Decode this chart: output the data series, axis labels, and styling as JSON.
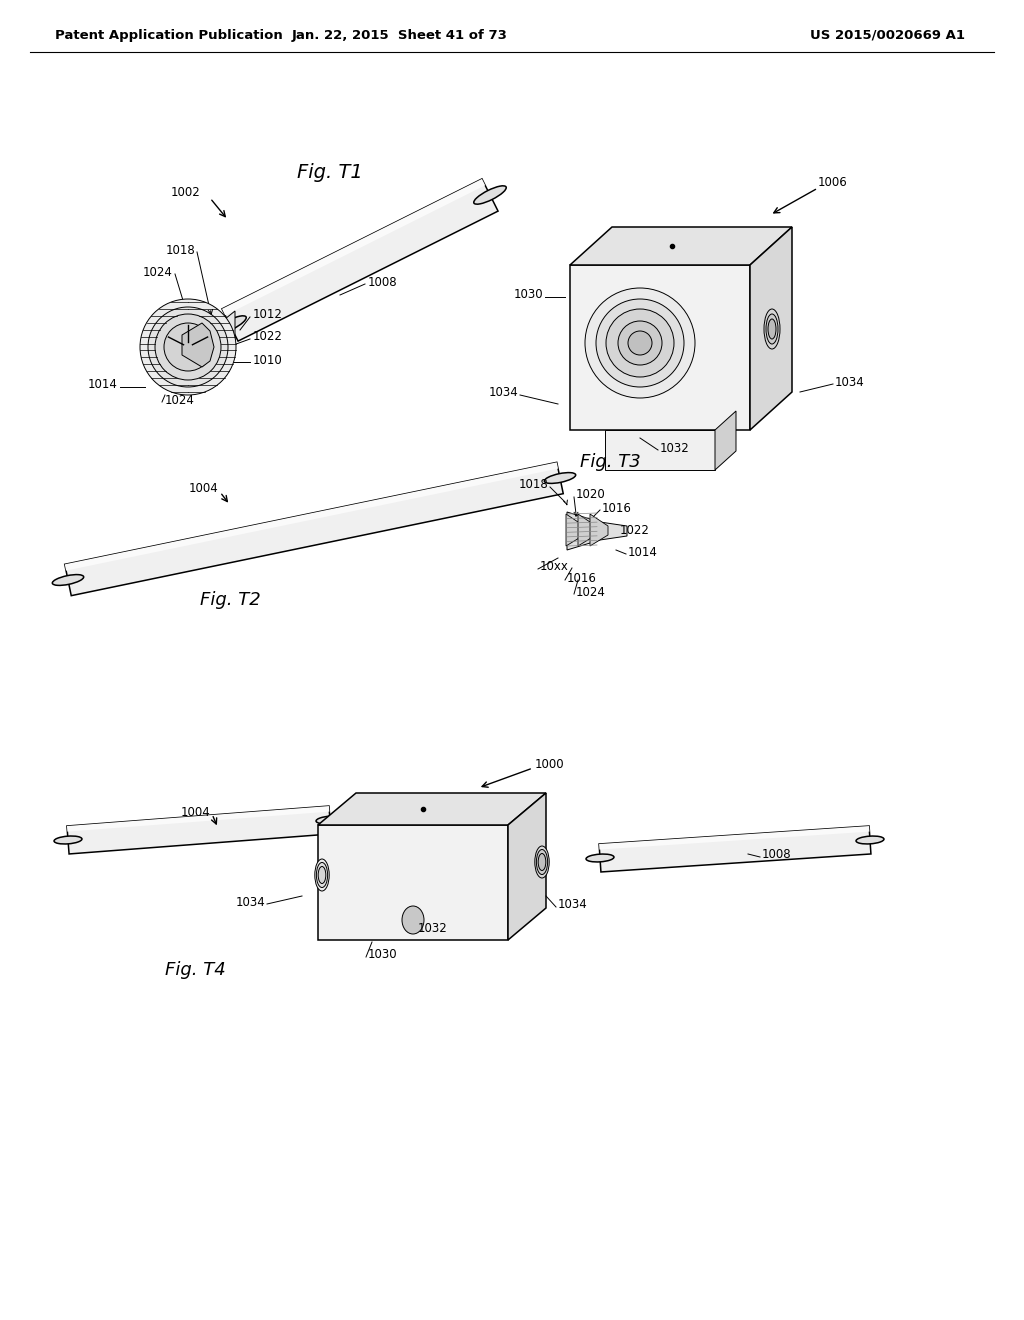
{
  "bg_color": "#ffffff",
  "header_left": "Patent Application Publication",
  "header_center": "Jan. 22, 2015  Sheet 41 of 73",
  "header_right": "US 2015/0020669 A1",
  "line_color": "#000000",
  "fig_t1_label": "Fig. T1",
  "fig_t2_label": "Fig. T2",
  "fig_t3_label": "Fig. T3",
  "fig_t4_label": "Fig. T4",
  "face_light": "#f5f5f5",
  "face_mid": "#e8e8e8",
  "face_dark": "#d8d8d8",
  "face_darker": "#c8c8c8"
}
